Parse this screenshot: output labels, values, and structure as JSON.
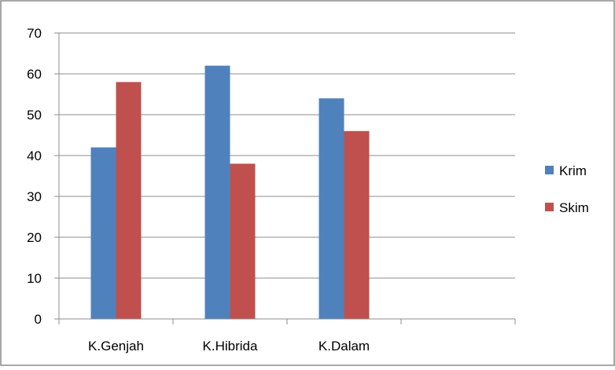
{
  "chart_data": {
    "type": "bar",
    "categories": [
      "K.Genjah",
      "K.Hibrida",
      "K.Dalam",
      ""
    ],
    "series": [
      {
        "name": "Krim",
        "color": "#4F81BD",
        "values": [
          42,
          62,
          54,
          null
        ]
      },
      {
        "name": "Skim",
        "color": "#C0504D",
        "values": [
          58,
          38,
          46,
          null
        ]
      }
    ],
    "title": "",
    "xlabel": "",
    "ylabel": "",
    "ylim": [
      0,
      70
    ],
    "yticks": [
      "0",
      "10",
      "20",
      "30",
      "40",
      "50",
      "60",
      "70"
    ],
    "grid": true,
    "legend_position": "right"
  }
}
